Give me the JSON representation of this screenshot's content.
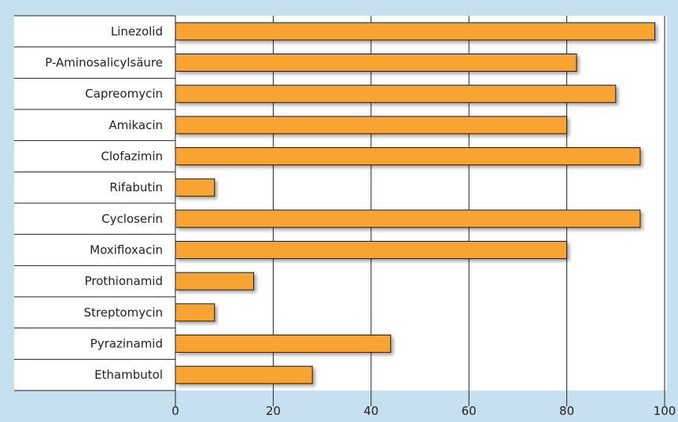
{
  "chart_data": {
    "type": "bar",
    "orientation": "horizontal",
    "categories": [
      "Linezolid",
      "P-Aminosalicylsäure",
      "Capreomycin",
      "Amikacin",
      "Clofazimin",
      "Rifabutin",
      "Cycloserin",
      "Moxifloxacin",
      "Prothionamid",
      "Streptomycin",
      "Pyrazinamid",
      "Ethambutol"
    ],
    "values": [
      98,
      82,
      90,
      80,
      95,
      8,
      95,
      80,
      16,
      8,
      44,
      28
    ],
    "xlim": [
      0,
      100
    ],
    "xticks": [
      "0",
      "20",
      "40",
      "60",
      "80",
      "100"
    ],
    "grid": "vertical",
    "title": "",
    "xlabel": "",
    "ylabel": ""
  },
  "colors": {
    "frame_background": "#c6e0ef",
    "plot_background": "#ffffff",
    "bar_fill": "#f7a433",
    "bar_stroke": "#1a1a1a",
    "grid": "#222222",
    "text": "#222222"
  }
}
